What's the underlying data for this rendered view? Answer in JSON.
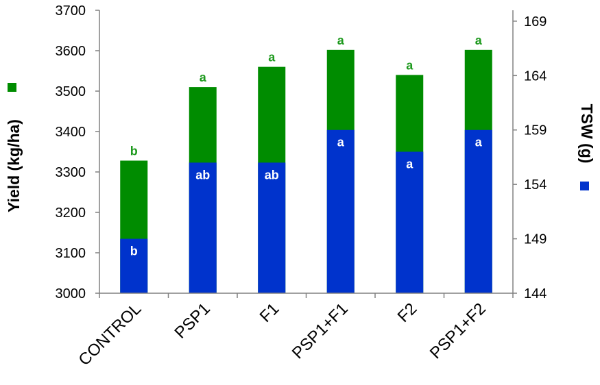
{
  "chart_data": {
    "type": "bar",
    "categories": [
      "CONTROL",
      "PSP1",
      "F1",
      "PSP1+F1",
      "F2",
      "PSP1+F2"
    ],
    "series": [
      {
        "axis": "left",
        "values": [
          3328,
          3510,
          3560,
          3602,
          3540,
          3602
        ],
        "letters": [
          "b",
          "a",
          "a",
          "a",
          "a",
          "a"
        ],
        "color": "#008c00"
      },
      {
        "axis": "right",
        "values": [
          149,
          156,
          156,
          159,
          157,
          159
        ],
        "letters": [
          "b",
          "ab",
          "ab",
          "a",
          "a",
          "a"
        ],
        "color": "#0033cc"
      }
    ],
    "ylabel_left": "Yield (kg/ha)",
    "ylabel_right": "TSW (g)",
    "ylim_left": [
      3000,
      3700
    ],
    "yticks_left": [
      "3000",
      "3100",
      "3200",
      "3300",
      "3400",
      "3500",
      "3600",
      "3700"
    ],
    "ylim_right": [
      144,
      170
    ],
    "yticks_right": [
      "144",
      "149",
      "154",
      "159",
      "164",
      "169"
    ],
    "grid": false,
    "legend_markers": [
      "#008c00",
      "#0033cc"
    ]
  }
}
